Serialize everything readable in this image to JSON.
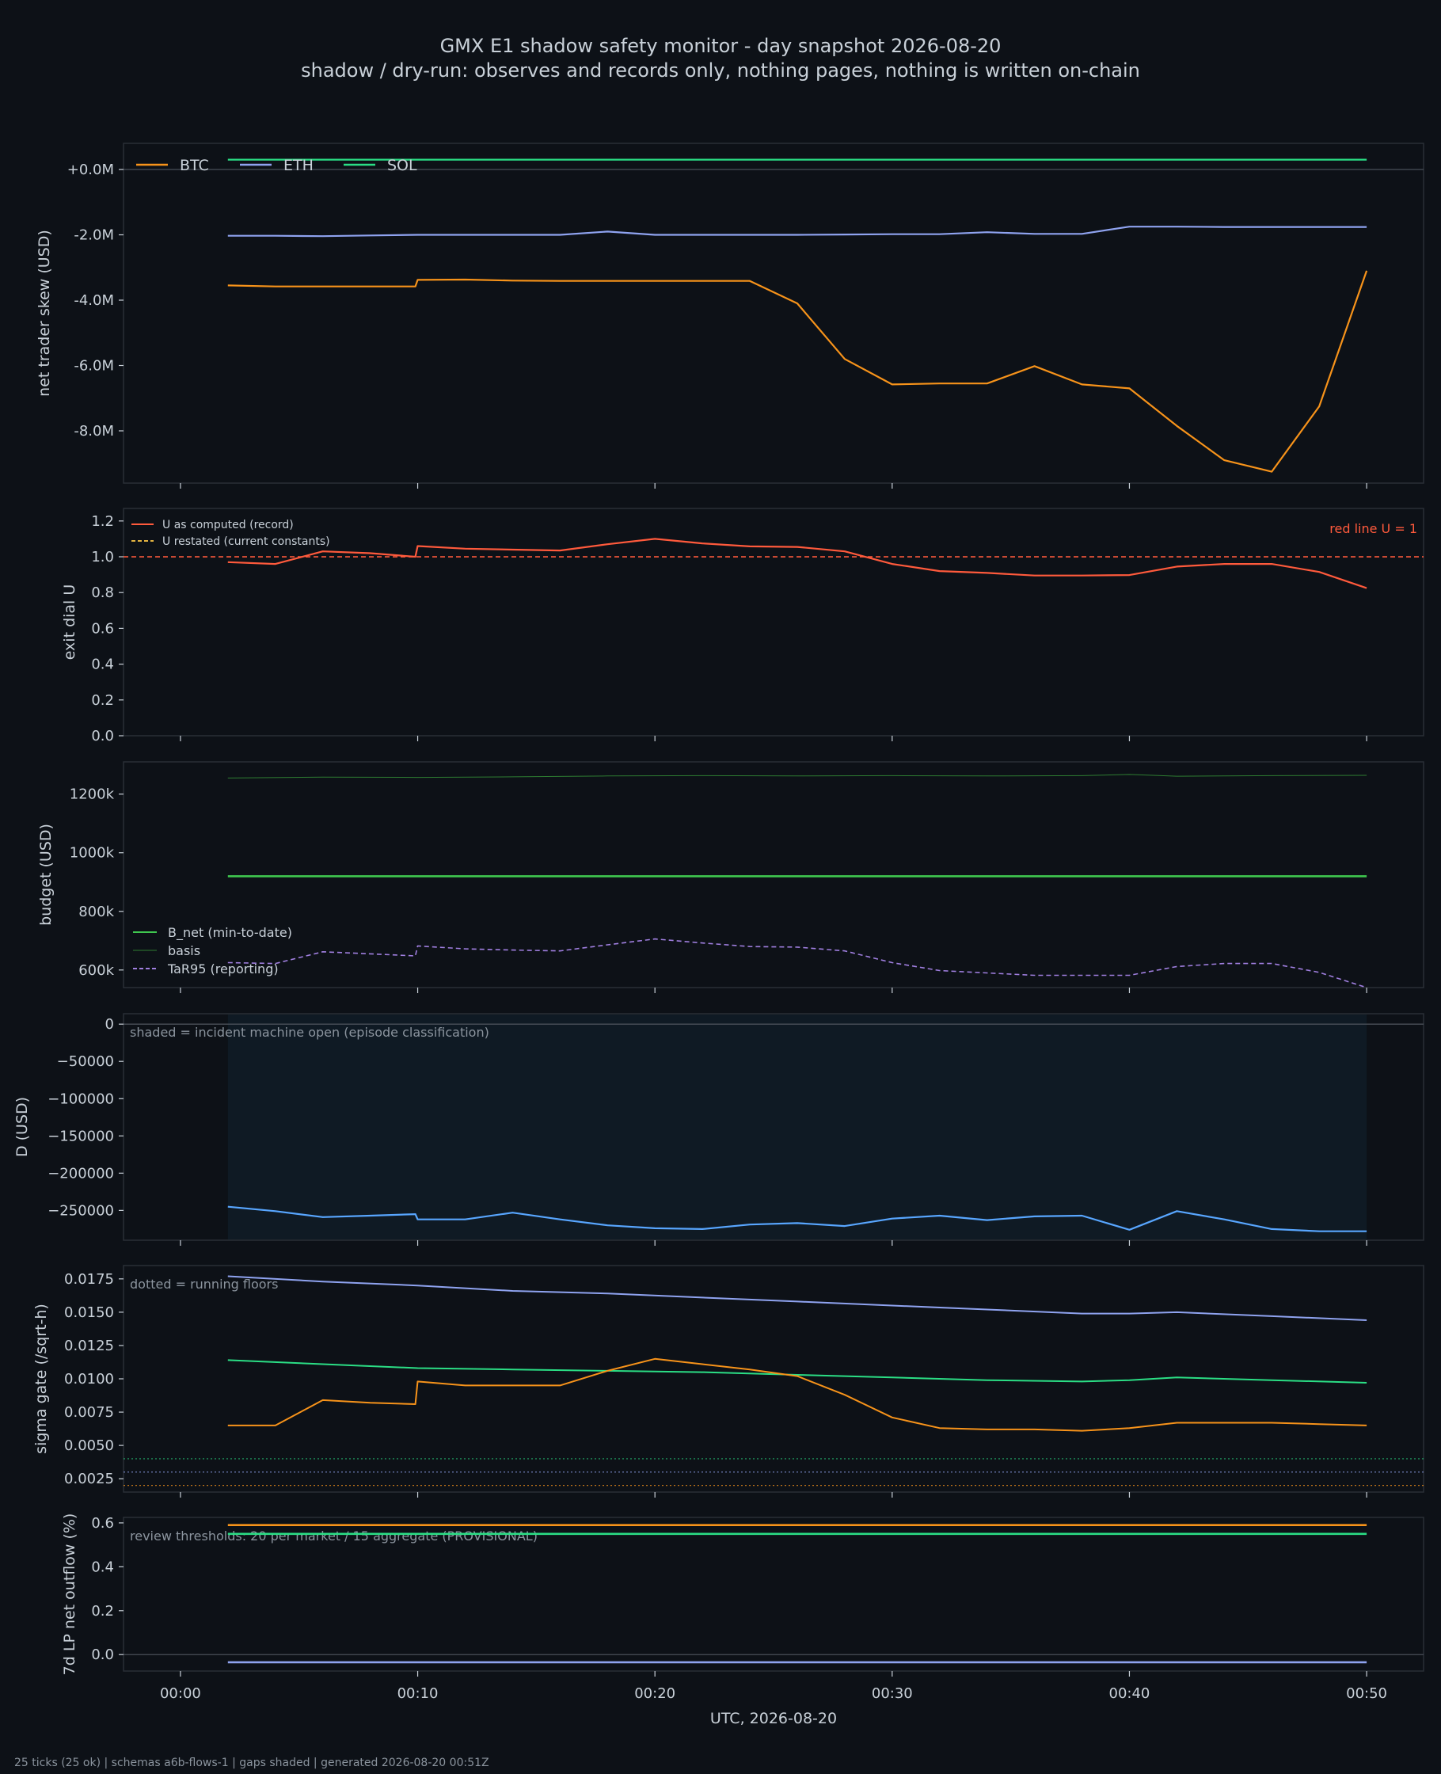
{
  "title": "GMX E1 shadow safety monitor - day snapshot 2026-08-20",
  "subtitle": "shadow / dry-run: observes and records only, nothing pages, nothing is written on-chain",
  "footer": "25 ticks (25 ok) | schemas a6b-flows-1 | gaps shaded | generated 2026-08-20 00:51Z",
  "colors": {
    "background": "#0d1117",
    "btc": "#f7931a",
    "eth": "#8fa3f0",
    "sol": "#2bde85",
    "u_computed": "#ff5a3c",
    "u_restated": "#e3b341",
    "red_line": "#ff5a3c",
    "b_net": "#3fc74f",
    "basis": "#2e7d32",
    "tar95": "#a07fe0",
    "d_line": "#58a6ff",
    "shade": "#0f1a24"
  },
  "chart_data": [
    {
      "type": "line",
      "id": "skew",
      "ylabel": "net trader skew (USD)",
      "ylim": [
        -9.6,
        0.8
      ],
      "yticks": [
        0,
        -2,
        -4,
        -6,
        -8
      ],
      "ytick_labels": [
        "+0.0M",
        "-2.0M",
        "-4.0M",
        "-6.0M",
        "-8.0M"
      ],
      "zero_line": true,
      "legend": {
        "placement": "top-left",
        "orientation": "horizontal"
      },
      "series": [
        {
          "name": "BTC",
          "color": "btc",
          "x": [
            2,
            4,
            6,
            8,
            9.9,
            10,
            12,
            14,
            16,
            18,
            20,
            22,
            24,
            26,
            28,
            30,
            32,
            34,
            36,
            38,
            40,
            42,
            44,
            46,
            48,
            50
          ],
          "y": [
            -3.55,
            -3.58,
            -3.58,
            -3.58,
            -3.58,
            -3.38,
            -3.37,
            -3.4,
            -3.41,
            -3.41,
            -3.41,
            -3.41,
            -3.41,
            -4.1,
            -5.8,
            -6.58,
            -6.55,
            -6.55,
            -6.02,
            -6.58,
            -6.7,
            -7.85,
            -8.9,
            -9.25,
            -7.25,
            -3.1
          ]
        },
        {
          "name": "ETH",
          "color": "eth",
          "x": [
            2,
            4,
            6,
            8,
            10,
            12,
            14,
            16,
            18,
            20,
            22,
            24,
            26,
            28,
            30,
            32,
            34,
            36,
            38,
            40,
            42,
            44,
            46,
            48,
            50
          ],
          "y": [
            -2.03,
            -2.03,
            -2.04,
            -2.02,
            -2.0,
            -2.0,
            -2.0,
            -2.0,
            -1.9,
            -2.0,
            -2.0,
            -2.0,
            -2.0,
            -1.99,
            -1.98,
            -1.98,
            -1.92,
            -1.97,
            -1.97,
            -1.75,
            -1.75,
            -1.76,
            -1.76,
            -1.76,
            -1.76
          ]
        },
        {
          "name": "SOL",
          "color": "sol",
          "x": [
            2,
            50
          ],
          "y": [
            0.3,
            0.3
          ]
        }
      ]
    },
    {
      "type": "line",
      "id": "exit_dial",
      "ylabel": "exit dial U",
      "ylim": [
        0,
        1.27
      ],
      "yticks": [
        0,
        0.2,
        0.4,
        0.6,
        0.8,
        1.0,
        1.2
      ],
      "ytick_labels": [
        "0.0",
        "0.2",
        "0.4",
        "0.6",
        "0.8",
        "1.0",
        "1.2"
      ],
      "legend": {
        "placement": "top-left",
        "orientation": "vertical"
      },
      "annotation": "red line U = 1",
      "red_line_value": 1.0,
      "series": [
        {
          "name": "U as computed (record)",
          "color": "u_computed",
          "x": [
            2,
            4,
            6,
            8,
            9.9,
            10,
            12,
            14,
            16,
            18,
            20,
            22,
            24,
            26,
            28,
            30,
            32,
            34,
            36,
            38,
            40,
            42,
            44,
            46,
            48,
            50
          ],
          "y": [
            0.97,
            0.96,
            1.03,
            1.02,
            1.0,
            1.06,
            1.045,
            1.04,
            1.035,
            1.07,
            1.1,
            1.075,
            1.058,
            1.055,
            1.03,
            0.96,
            0.92,
            0.91,
            0.895,
            0.895,
            0.898,
            0.945,
            0.96,
            0.96,
            0.915,
            0.825
          ]
        },
        {
          "name": "U restated (current constants)",
          "color": "u_restated",
          "x": [],
          "y": []
        }
      ]
    },
    {
      "type": "line",
      "id": "budget",
      "ylabel": "budget (USD)",
      "ylim": [
        540,
        1310
      ],
      "yticks": [
        600,
        800,
        1000,
        1200
      ],
      "ytick_labels": [
        "600k",
        "800k",
        "1000k",
        "1200k"
      ],
      "legend": {
        "placement": "bottom-left",
        "orientation": "vertical"
      },
      "series": [
        {
          "name": "B_net (min-to-date)",
          "color": "b_net",
          "x": [
            2,
            50
          ],
          "y": [
            920,
            920
          ]
        },
        {
          "name": "basis",
          "color": "basis",
          "x": [
            2,
            6,
            10,
            14,
            18,
            22,
            26,
            30,
            34,
            38,
            40,
            42,
            46,
            50
          ],
          "y": [
            1255,
            1258,
            1257,
            1259,
            1262,
            1263,
            1262,
            1263,
            1262,
            1263,
            1267,
            1261,
            1263,
            1264
          ]
        },
        {
          "name": "TaR95 (reporting)",
          "color": "tar95",
          "x": [
            2,
            4,
            6,
            8,
            9.9,
            10,
            12,
            14,
            16,
            18,
            20,
            22,
            24,
            26,
            28,
            30,
            32,
            34,
            36,
            38,
            40,
            42,
            44,
            46,
            48,
            50
          ],
          "y": [
            625,
            622,
            662,
            655,
            648,
            682,
            672,
            668,
            665,
            686,
            706,
            692,
            680,
            678,
            665,
            625,
            598,
            590,
            582,
            582,
            582,
            612,
            622,
            622,
            592,
            540
          ]
        }
      ]
    },
    {
      "type": "line",
      "id": "drawdown",
      "ylabel": "D (USD)",
      "ylim": [
        -290000,
        14000
      ],
      "yticks": [
        0,
        -50000,
        -100000,
        -150000,
        -200000,
        -250000
      ],
      "ytick_labels": [
        "0",
        "−50000",
        "−100000",
        "−150000",
        "−200000",
        "−250000"
      ],
      "zero_line": true,
      "annotation": "shaded = incident machine open (episode classification)",
      "shade_x": [
        2,
        50
      ],
      "series": [
        {
          "name": "D",
          "color": "d_line",
          "x": [
            2,
            4,
            6,
            8,
            9.9,
            10,
            12,
            14,
            16,
            18,
            20,
            22,
            24,
            26,
            28,
            30,
            32,
            34,
            36,
            38,
            40,
            42,
            44,
            46,
            48,
            50
          ],
          "y": [
            -245000,
            -251000,
            -259000,
            -257000,
            -255000,
            -262000,
            -262000,
            -253000,
            -262000,
            -270000,
            -274000,
            -275000,
            -269000,
            -267000,
            -271000,
            -261000,
            -257000,
            -263000,
            -258000,
            -257000,
            -276000,
            -251000,
            -262000,
            -275000,
            -278000,
            -278000
          ]
        }
      ]
    },
    {
      "type": "line",
      "id": "sigma_gate",
      "ylabel": "sigma gate (/sqrt-h)",
      "ylim": [
        0.0015,
        0.0185
      ],
      "yticks": [
        0.0025,
        0.005,
        0.0075,
        0.01,
        0.0125,
        0.015,
        0.0175
      ],
      "ytick_labels": [
        "0.0025",
        "0.0050",
        "0.0075",
        "0.0100",
        "0.0125",
        "0.0150",
        "0.0175"
      ],
      "annotation": "dotted = running floors",
      "floors": [
        {
          "color": "sol",
          "value": 0.004
        },
        {
          "color": "eth",
          "value": 0.003
        },
        {
          "color": "btc",
          "value": 0.002
        }
      ],
      "series": [
        {
          "name": "ETH",
          "color": "eth",
          "x": [
            2,
            6,
            10,
            14,
            18,
            22,
            26,
            30,
            34,
            38,
            40,
            42,
            46,
            50
          ],
          "y": [
            0.0177,
            0.0173,
            0.017,
            0.0166,
            0.0164,
            0.0161,
            0.0158,
            0.0155,
            0.0152,
            0.0149,
            0.0149,
            0.015,
            0.0147,
            0.0144
          ]
        },
        {
          "name": "SOL",
          "color": "sol",
          "x": [
            2,
            6,
            10,
            14,
            18,
            22,
            26,
            30,
            34,
            38,
            40,
            42,
            46,
            50
          ],
          "y": [
            0.0114,
            0.0111,
            0.0108,
            0.0107,
            0.0106,
            0.0105,
            0.0103,
            0.0101,
            0.0099,
            0.0098,
            0.0099,
            0.0101,
            0.0099,
            0.0097
          ]
        },
        {
          "name": "BTC",
          "color": "btc",
          "x": [
            2,
            4,
            6,
            8,
            9.9,
            10,
            12,
            14,
            16,
            18,
            20,
            22,
            24,
            26,
            28,
            30,
            32,
            34,
            36,
            38,
            40,
            42,
            44,
            46,
            48,
            50
          ],
          "y": [
            0.0065,
            0.0065,
            0.0084,
            0.0082,
            0.0081,
            0.0098,
            0.0095,
            0.0095,
            0.0095,
            0.0106,
            0.0115,
            0.0111,
            0.0107,
            0.0102,
            0.0088,
            0.0071,
            0.0063,
            0.0062,
            0.0062,
            0.0061,
            0.0063,
            0.0067,
            0.0067,
            0.0067,
            0.0066,
            0.0065
          ]
        }
      ]
    },
    {
      "type": "line",
      "id": "lp_outflow",
      "ylabel": "7d LP net outflow (%)",
      "ylim": [
        -0.075,
        0.625
      ],
      "yticks": [
        0,
        0.2,
        0.4,
        0.6
      ],
      "ytick_labels": [
        "0.0",
        "0.2",
        "0.4",
        "0.6"
      ],
      "zero_line": true,
      "annotation": "review thresholds: 20 per market / 15 aggregate (PROVISIONAL)",
      "xlabel": "UTC, 2026-08-20",
      "xticks": [
        0,
        10,
        20,
        30,
        40,
        50
      ],
      "xtick_labels": [
        "00:00",
        "00:10",
        "00:20",
        "00:30",
        "00:40",
        "00:50"
      ],
      "series": [
        {
          "name": "BTC",
          "color": "btc",
          "x": [
            2,
            50
          ],
          "y": [
            0.59,
            0.59
          ]
        },
        {
          "name": "SOL",
          "color": "sol",
          "x": [
            2,
            50
          ],
          "y": [
            0.55,
            0.55
          ]
        },
        {
          "name": "ETH",
          "color": "eth",
          "x": [
            2,
            50
          ],
          "y": [
            -0.035,
            -0.035
          ]
        }
      ]
    }
  ]
}
